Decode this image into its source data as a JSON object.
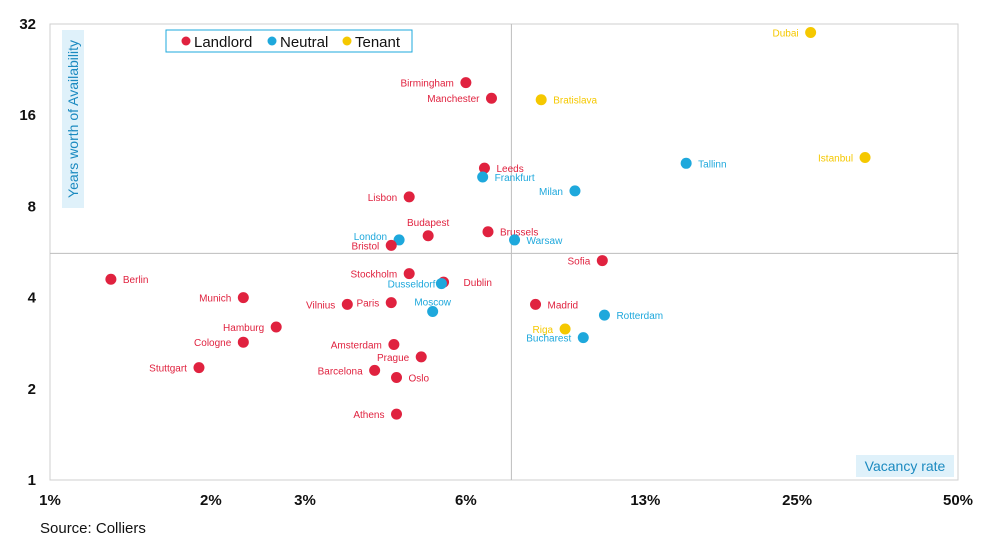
{
  "chart_data": {
    "type": "scatter",
    "xlabel": "Vacancy rate",
    "ylabel": "Years worth of Availability",
    "x_ticks": [
      1,
      2,
      3,
      6,
      13,
      25,
      50
    ],
    "x_tick_labels": [
      "1%",
      "2%",
      "3%",
      "6%",
      "13%",
      "25%",
      "50%"
    ],
    "xlim": [
      1,
      50
    ],
    "x_scale": "log",
    "y_ticks": [
      1,
      2,
      4,
      8,
      16,
      32
    ],
    "y_tick_labels": [
      "1",
      "2",
      "4",
      "8",
      "16",
      "32"
    ],
    "ylim": [
      1,
      32
    ],
    "y_scale": "log",
    "quadrant_lines": {
      "x": 7.3,
      "y": 5.6
    },
    "legend": [
      {
        "name": "Landlord",
        "color": "#e0223f"
      },
      {
        "name": "Neutral",
        "color": "#1ea8dc"
      },
      {
        "name": "Tenant",
        "color": "#f5c800"
      }
    ],
    "points": [
      {
        "city": "Dubai",
        "x": 26.5,
        "y": 30,
        "group": "Tenant"
      },
      {
        "city": "Birmingham",
        "x": 6.0,
        "y": 20.5,
        "group": "Landlord"
      },
      {
        "city": "Manchester",
        "x": 6.7,
        "y": 18.2,
        "group": "Landlord"
      },
      {
        "city": "Bratislava",
        "x": 8.3,
        "y": 18,
        "group": "Tenant"
      },
      {
        "city": "Istanbul",
        "x": 33.5,
        "y": 11.6,
        "group": "Tenant"
      },
      {
        "city": "Tallinn",
        "x": 15.5,
        "y": 11.1,
        "group": "Neutral"
      },
      {
        "city": "Leeds",
        "x": 6.5,
        "y": 10.7,
        "group": "Landlord"
      },
      {
        "city": "Frankfurt",
        "x": 6.45,
        "y": 10,
        "group": "Neutral"
      },
      {
        "city": "Milan",
        "x": 9.6,
        "y": 9,
        "group": "Neutral"
      },
      {
        "city": "Lisbon",
        "x": 4.7,
        "y": 8.6,
        "group": "Landlord"
      },
      {
        "city": "Budapest",
        "x": 5.1,
        "y": 6.4,
        "group": "Landlord"
      },
      {
        "city": "Brussels",
        "x": 6.6,
        "y": 6.6,
        "group": "Landlord"
      },
      {
        "city": "London",
        "x": 4.5,
        "y": 6.2,
        "group": "Neutral"
      },
      {
        "city": "Warsaw",
        "x": 7.4,
        "y": 6.2,
        "group": "Neutral"
      },
      {
        "city": "Bristol",
        "x": 4.35,
        "y": 5.95,
        "group": "Landlord"
      },
      {
        "city": "Sofia",
        "x": 10.8,
        "y": 5.3,
        "group": "Landlord"
      },
      {
        "city": "Berlin",
        "x": 1.3,
        "y": 4.6,
        "group": "Landlord"
      },
      {
        "city": "Stockholm",
        "x": 4.7,
        "y": 4.8,
        "group": "Landlord"
      },
      {
        "city": "Dublin",
        "x": 5.45,
        "y": 4.5,
        "group": "Landlord"
      },
      {
        "city": "Dusseldorf",
        "x": 5.4,
        "y": 4.45,
        "group": "Neutral"
      },
      {
        "city": "Munich",
        "x": 2.3,
        "y": 4.0,
        "group": "Landlord"
      },
      {
        "city": "Paris",
        "x": 4.35,
        "y": 3.85,
        "group": "Landlord"
      },
      {
        "city": "Madrid",
        "x": 8.1,
        "y": 3.8,
        "group": "Landlord"
      },
      {
        "city": "Vilnius",
        "x": 3.6,
        "y": 3.8,
        "group": "Landlord"
      },
      {
        "city": "Moscow",
        "x": 5.2,
        "y": 3.6,
        "group": "Neutral"
      },
      {
        "city": "Rotterdam",
        "x": 10.9,
        "y": 3.5,
        "group": "Neutral"
      },
      {
        "city": "Hamburg",
        "x": 2.65,
        "y": 3.2,
        "group": "Landlord"
      },
      {
        "city": "Riga",
        "x": 9.2,
        "y": 3.15,
        "group": "Tenant"
      },
      {
        "city": "Bucharest",
        "x": 9.95,
        "y": 2.95,
        "group": "Neutral"
      },
      {
        "city": "Cologne",
        "x": 2.3,
        "y": 2.85,
        "group": "Landlord"
      },
      {
        "city": "Amsterdam",
        "x": 4.4,
        "y": 2.8,
        "group": "Landlord"
      },
      {
        "city": "Prague",
        "x": 4.95,
        "y": 2.55,
        "group": "Landlord"
      },
      {
        "city": "Stuttgart",
        "x": 1.9,
        "y": 2.35,
        "group": "Landlord"
      },
      {
        "city": "Barcelona",
        "x": 4.05,
        "y": 2.3,
        "group": "Landlord"
      },
      {
        "city": "Oslo",
        "x": 4.45,
        "y": 2.18,
        "group": "Landlord"
      },
      {
        "city": "Athens",
        "x": 4.45,
        "y": 1.65,
        "group": "Landlord"
      }
    ]
  },
  "source": "Source: Colliers"
}
